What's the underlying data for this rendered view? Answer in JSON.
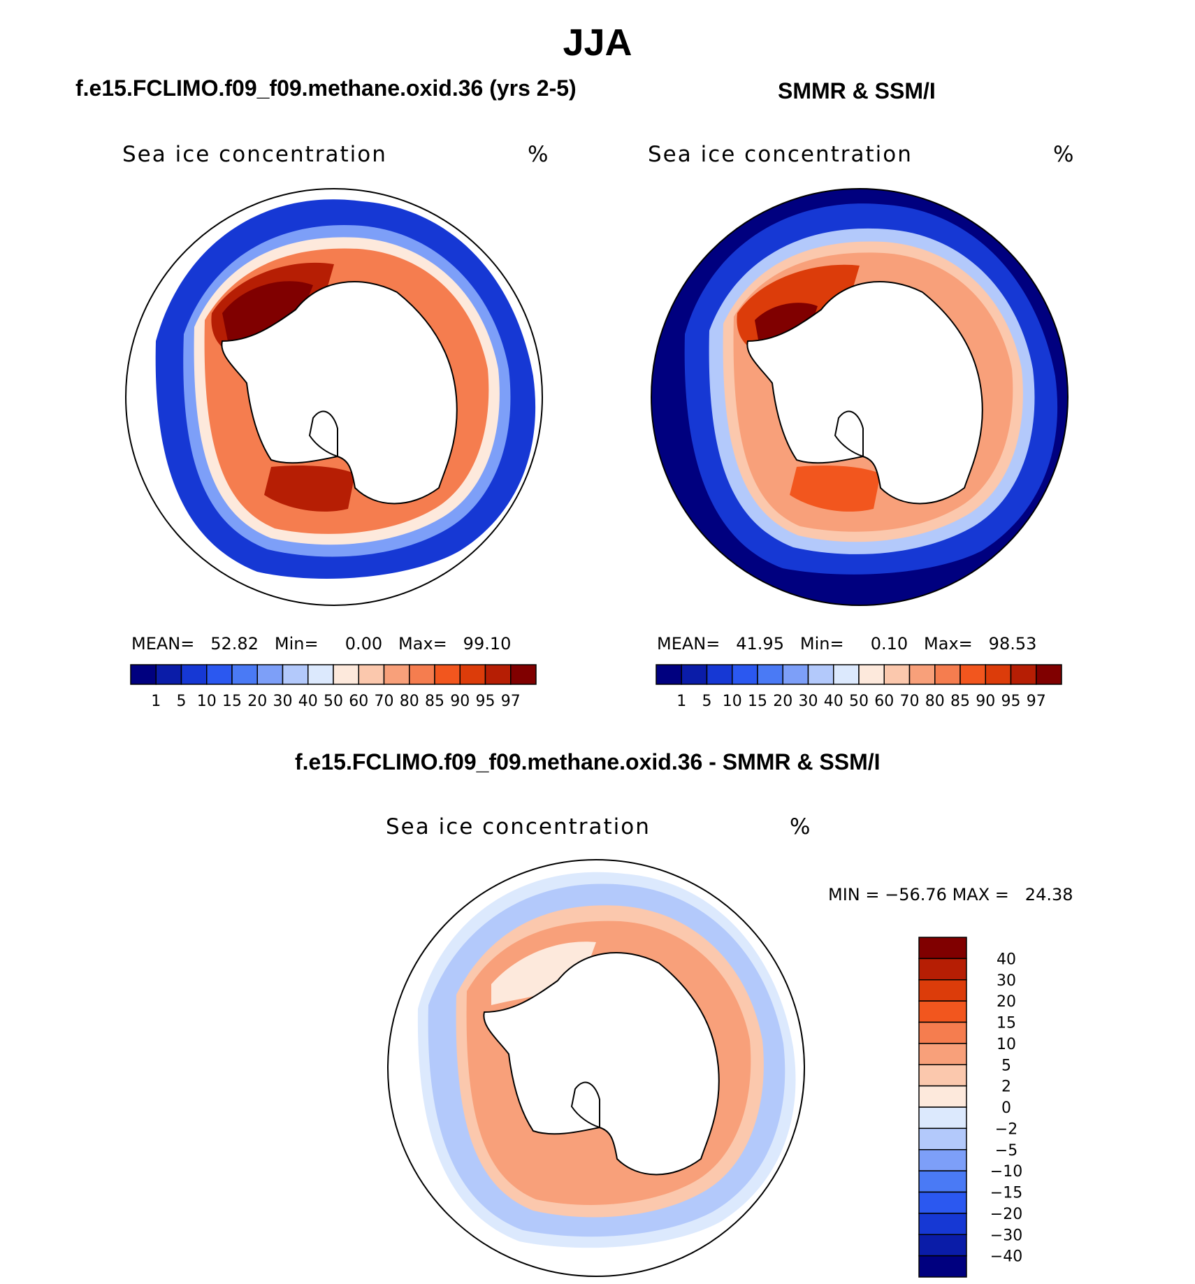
{
  "title": "JJA",
  "colors": {
    "levels": [
      "#00007f",
      "#0a1ca8",
      "#1638d4",
      "#2b58f0",
      "#4a7af5",
      "#7d9ff8",
      "#b3c9fb",
      "#dce9fd",
      "#fde9dc",
      "#fbc8ad",
      "#f8a07a",
      "#f57d4f",
      "#f2561e",
      "#dc3c0a",
      "#b61e04",
      "#800000"
    ]
  },
  "panels": [
    {
      "title": "f.e15.FCLIMO.f09_f09.methane.oxid.36 (yrs 2-5)",
      "variable": "Sea ice concentration",
      "units": "%",
      "mean_label": "MEAN=",
      "mean": "52.82",
      "min_label": "Min=",
      "min": "0.00",
      "max_label": "Max=",
      "max": "99.10",
      "colorbar_labels": [
        "1",
        "5",
        "10",
        "15",
        "20",
        "30",
        "40",
        "50",
        "60",
        "70",
        "80",
        "85",
        "90",
        "95",
        "97"
      ]
    },
    {
      "title": "SMMR & SSM/I",
      "variable": "Sea ice concentration",
      "units": "%",
      "mean_label": "MEAN=",
      "mean": "41.95",
      "min_label": "Min=",
      "min": "0.10",
      "max_label": "Max=",
      "max": "98.53",
      "colorbar_labels": [
        "1",
        "5",
        "10",
        "15",
        "20",
        "30",
        "40",
        "50",
        "60",
        "70",
        "80",
        "85",
        "90",
        "95",
        "97"
      ]
    },
    {
      "title": "f.e15.FCLIMO.f09_f09.methane.oxid.36 - SMMR & SSM/I",
      "variable": "Sea ice concentration",
      "units": "%",
      "min_label": "MIN =",
      "min": "−56.76",
      "max_label": "MAX =",
      "max": "24.38",
      "colorbar_labels": [
        "40",
        "30",
        "20",
        "15",
        "10",
        "5",
        "2",
        "0",
        "−2",
        "−5",
        "−10",
        "−15",
        "−20",
        "−30",
        "−40"
      ]
    }
  ]
}
